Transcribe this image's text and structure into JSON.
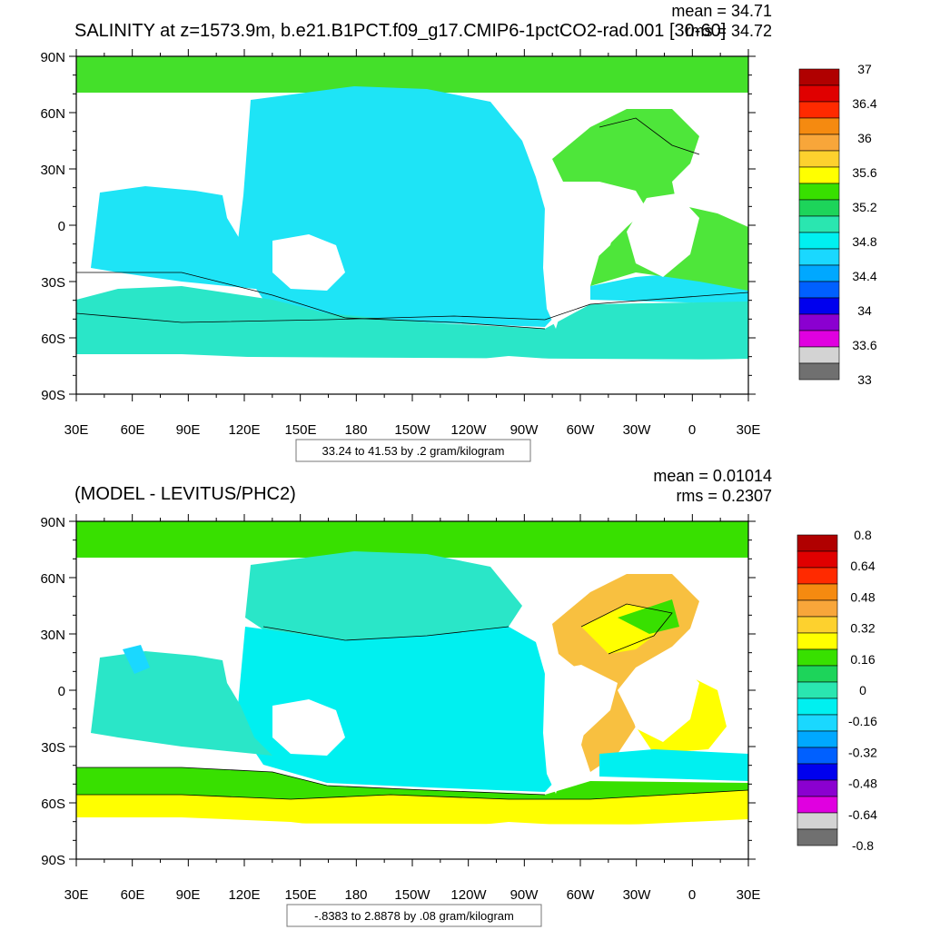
{
  "panels": [
    {
      "id": "top",
      "title": "SALINITY at z=1573.9m, b.e21.B1PCT.f09_g17.CMIP6-1pctCO2-rad.001 [30-60]",
      "stats": {
        "mean": "mean = 34.71",
        "rms": "rms = 34.72"
      },
      "lat_labels": [
        "90N",
        "60N",
        "30N",
        "0",
        "30S",
        "60S",
        "90S"
      ],
      "lon_labels": [
        "30E",
        "60E",
        "90E",
        "120E",
        "150E",
        "180",
        "150W",
        "120W",
        "90W",
        "60W",
        "30W",
        "0",
        "30E"
      ],
      "contour_info": "33.24 to 41.53 by .2 gram/kilogram",
      "colorbar": {
        "labels": [
          "37",
          "36.4",
          "36",
          "35.6",
          "35.2",
          "34.8",
          "34.4",
          "34",
          "33.6",
          "33"
        ],
        "colors": [
          "#b00000",
          "#e00000",
          "#ff2a00",
          "#f58a10",
          "#f8a63a",
          "#fdd12e",
          "#ffff00",
          "#38e000",
          "#1dd45a",
          "#2ae6b0",
          "#00f0f0",
          "#1ad8ff",
          "#00a8ff",
          "#0060ff",
          "#0000ee",
          "#8b00d0",
          "#e000e0",
          "#d3d3d3",
          "#707070"
        ]
      }
    },
    {
      "id": "bottom",
      "title": "(MODEL - LEVITUS/PHC2)",
      "stats": {
        "mean": "mean = 0.01014",
        "rms": "rms = 0.2307"
      },
      "lat_labels": [
        "90N",
        "60N",
        "30N",
        "0",
        "30S",
        "60S",
        "90S"
      ],
      "lon_labels": [
        "30E",
        "60E",
        "90E",
        "120E",
        "150E",
        "180",
        "150W",
        "120W",
        "90W",
        "60W",
        "30W",
        "0",
        "30E"
      ],
      "contour_info": "-.8383 to 2.8878 by .08 gram/kilogram",
      "colorbar": {
        "labels": [
          "0.8",
          "0.64",
          "0.48",
          "0.32",
          "0.16",
          "0",
          "-0.16",
          "-0.32",
          "-0.48",
          "-0.64",
          "-0.8"
        ],
        "colors": [
          "#b00000",
          "#e00000",
          "#ff2a00",
          "#f58a10",
          "#f8a63a",
          "#fdd12e",
          "#ffff00",
          "#38e000",
          "#1dd45a",
          "#2ae6b0",
          "#00f0f0",
          "#1ad8ff",
          "#00a8ff",
          "#0060ff",
          "#0000ee",
          "#8b00d0",
          "#e000e0",
          "#d3d3d3",
          "#707070"
        ]
      }
    }
  ],
  "field_colors": {
    "arctic": "#44e02a",
    "atlantic_green": "#4ee63a",
    "pacific_cyan": "#1ee4f6",
    "southern_teal": "#2ae6c8",
    "diff_pacific": "#00f0f0",
    "diff_north_pacific": "#2ae6c8",
    "diff_southern_green": "#38e000",
    "diff_yellow": "#ffff00",
    "diff_orange": "#f8c040",
    "land": "#ffffff"
  }
}
